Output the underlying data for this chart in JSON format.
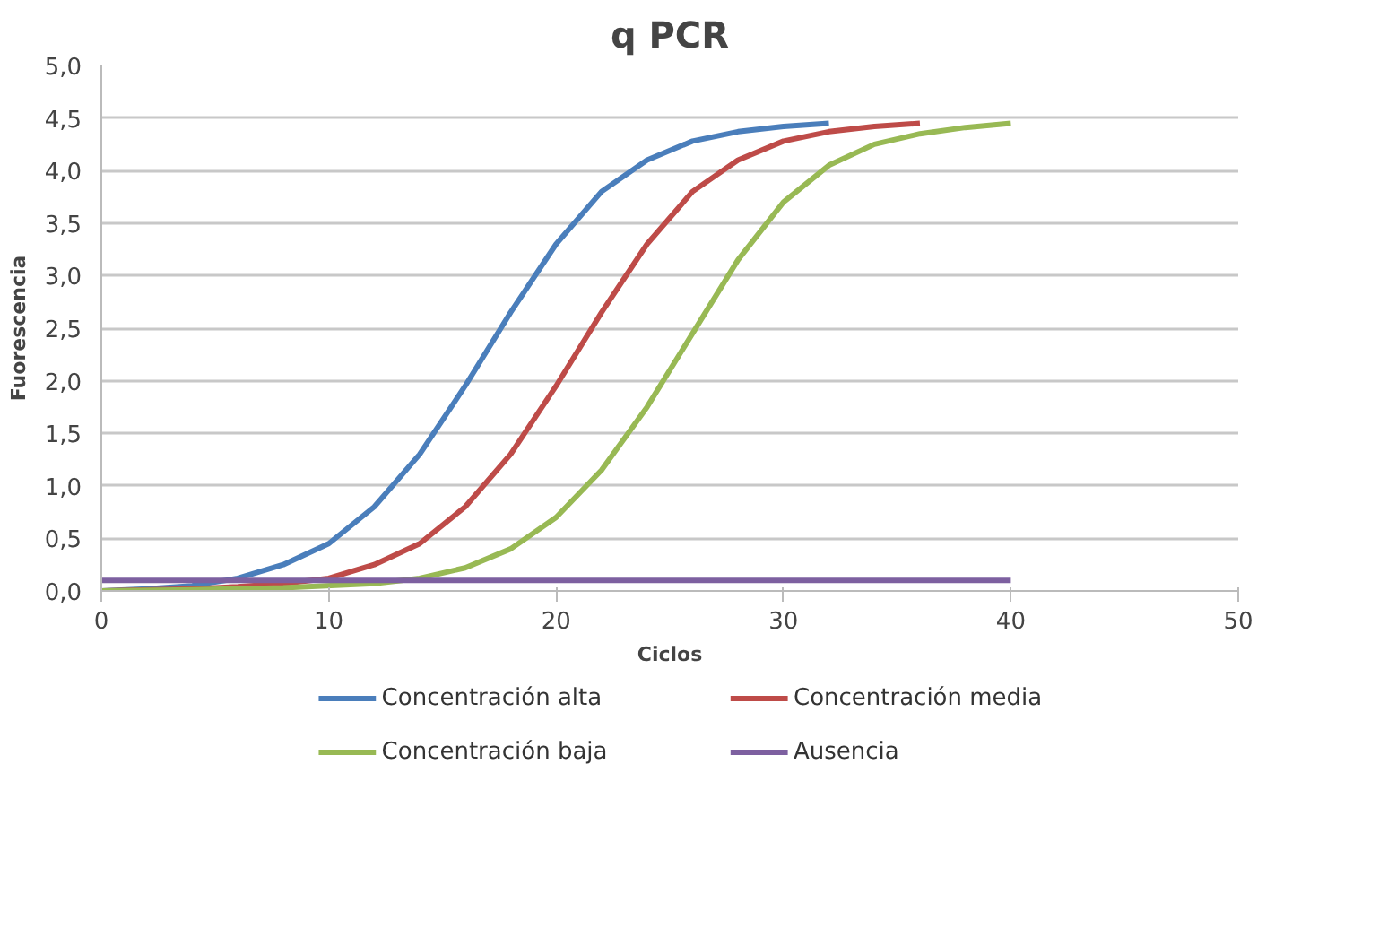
{
  "chart_data": {
    "type": "line",
    "title": "q PCR",
    "xlabel": "Ciclos",
    "ylabel": "Fuorescencia",
    "xlim": [
      0,
      50
    ],
    "xticks": [
      0,
      10,
      20,
      30,
      40,
      50
    ],
    "ylim": [
      0,
      5
    ],
    "yticks": [
      {
        "value": 0,
        "label": "0,0"
      },
      {
        "value": 0.5,
        "label": "0,5"
      },
      {
        "value": 1,
        "label": "1,0"
      },
      {
        "value": 1.5,
        "label": "1,5"
      },
      {
        "value": 2,
        "label": "2,0"
      },
      {
        "value": 2.5,
        "label": "2,5"
      },
      {
        "value": 3,
        "label": "3,0"
      },
      {
        "value": 3.5,
        "label": "3,5"
      },
      {
        "value": 4,
        "label": "4,0"
      },
      {
        "value": 4.5,
        "label": "4,5"
      },
      {
        "value": 5,
        "label": "5,0"
      }
    ],
    "grid": "y",
    "legend": "bottom",
    "marker": "none",
    "line_style": "solid",
    "series": [
      {
        "name": "Concentración alta",
        "color": "#4a7ebb",
        "x": [
          0,
          2,
          4,
          6,
          8,
          10,
          12,
          14,
          16,
          18,
          20,
          22,
          24,
          26,
          28,
          30,
          32
        ],
        "values": [
          0,
          0.02,
          0.05,
          0.12,
          0.25,
          0.45,
          0.8,
          1.3,
          1.95,
          2.65,
          3.3,
          3.8,
          4.1,
          4.28,
          4.37,
          4.42,
          4.45
        ]
      },
      {
        "name": "Concentración media",
        "color": "#be4b48",
        "x": [
          0,
          4,
          6,
          8,
          10,
          12,
          14,
          16,
          18,
          20,
          22,
          24,
          26,
          28,
          30,
          32,
          34,
          36
        ],
        "values": [
          0,
          0.02,
          0.04,
          0.07,
          0.12,
          0.25,
          0.45,
          0.8,
          1.3,
          1.95,
          2.65,
          3.3,
          3.8,
          4.1,
          4.28,
          4.37,
          4.42,
          4.45
        ]
      },
      {
        "name": "Concentración baja",
        "color": "#98b954",
        "x": [
          0,
          4,
          8,
          12,
          14,
          16,
          18,
          20,
          22,
          24,
          26,
          28,
          30,
          32,
          34,
          36,
          38,
          40
        ],
        "values": [
          0,
          0.01,
          0.03,
          0.07,
          0.12,
          0.22,
          0.4,
          0.7,
          1.15,
          1.75,
          2.45,
          3.15,
          3.7,
          4.05,
          4.25,
          4.35,
          4.41,
          4.45
        ]
      },
      {
        "name": "Ausencia",
        "color": "#7d60a0",
        "x": [
          0,
          40
        ],
        "values": [
          0.1,
          0.1
        ]
      }
    ]
  }
}
